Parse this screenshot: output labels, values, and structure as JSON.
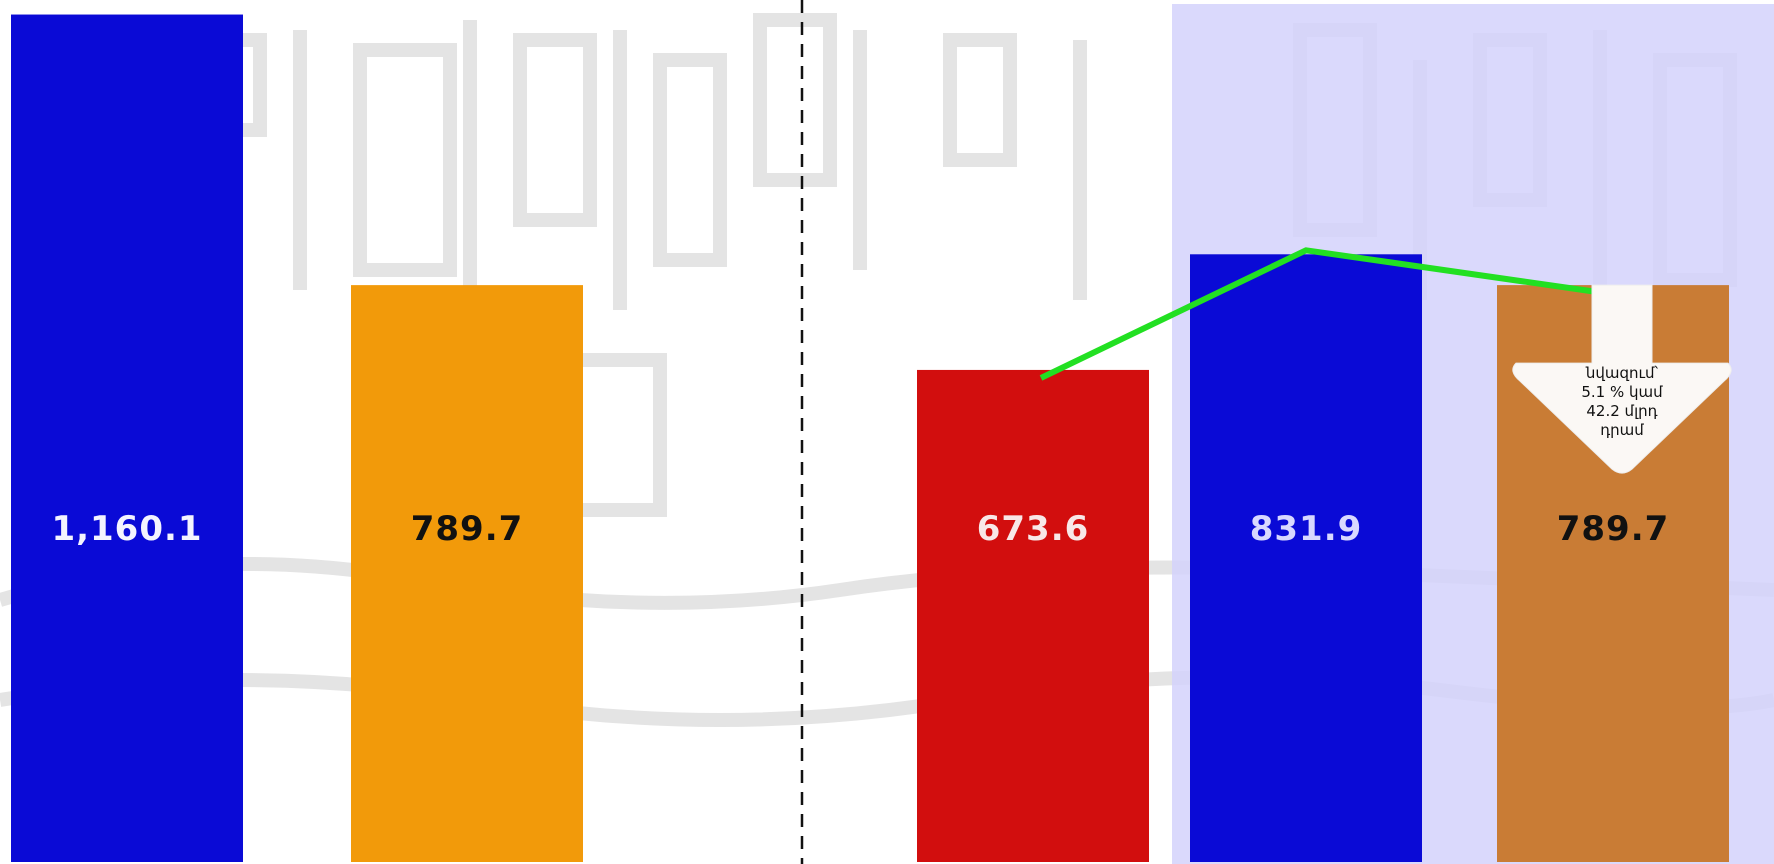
{
  "chart_data": {
    "type": "bar",
    "values": [
      1160.1,
      789.7,
      673.6,
      831.9,
      789.7
    ],
    "value_labels": [
      "1,160.1",
      "789.7",
      "673.6",
      "831.9",
      "789.7"
    ],
    "bar_colors": [
      "#0a0ad6",
      "#f29a0a",
      "#d20e0e",
      "#0a0ad6",
      "#c97c35"
    ],
    "label_colors": [
      "#f4f4ff",
      "#111111",
      "#f8e8e8",
      "#d8d8ff",
      "#111111"
    ],
    "ylim": [
      0,
      1180
    ],
    "trend_line": {
      "color": "#22e022",
      "from_bar": 2,
      "to_bar": 4
    },
    "divider": "dashed line between bar 2 and bar 3",
    "highlight_region": {
      "color": "#d4d2fb",
      "bars": [
        3,
        4
      ]
    },
    "callout": {
      "lines": [
        "նվազում՝",
        "5.1 % կամ",
        "42.2  մլրդ",
        "դրամ"
      ],
      "on_bar": 4,
      "shape": "down-arrow"
    },
    "grid": false,
    "legend": "none",
    "title": "",
    "xlabel": "",
    "ylabel": ""
  }
}
